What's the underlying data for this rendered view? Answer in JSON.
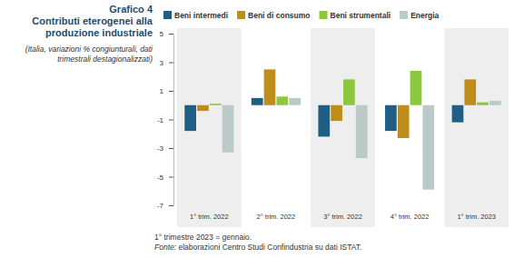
{
  "chart_data": {
    "type": "bar",
    "figure_label": "Grafico 4",
    "title": "Contributi eterogenei alla produzione industriale",
    "subtitle": "(Italia, variazioni % congiunturali, dati trimestrali destagionalizzati)",
    "notes": [
      "1° trimestre 2023 = gennaio.",
      "Fonte: elaborazioni Centro Studi Confindustria su dati ISTAT."
    ],
    "categories": [
      "1° trim. 2022",
      "2° trim. 2022",
      "3° trim. 2022",
      "4° trim. 2022",
      "1° trim. 2023"
    ],
    "series": [
      {
        "name": "Beni intermedi",
        "color": "#1f5f86",
        "values": [
          -1.8,
          0.5,
          -2.2,
          -1.8,
          -1.2
        ]
      },
      {
        "name": "Beni di consumo",
        "color": "#bf8d1c",
        "values": [
          -0.4,
          2.5,
          -1.1,
          -2.3,
          1.8
        ]
      },
      {
        "name": "Beni strumentali",
        "color": "#8dc63f",
        "values": [
          0.1,
          0.6,
          1.8,
          2.4,
          0.2
        ]
      },
      {
        "name": "Energia",
        "color": "#b9cac9",
        "values": [
          -3.3,
          0.5,
          -3.7,
          -5.9,
          0.3
        ]
      }
    ],
    "ylim": [
      -7,
      5
    ],
    "yticks": [
      -7,
      -5,
      -3,
      -1,
      1,
      3,
      5
    ],
    "grid": false,
    "legend": "top"
  }
}
